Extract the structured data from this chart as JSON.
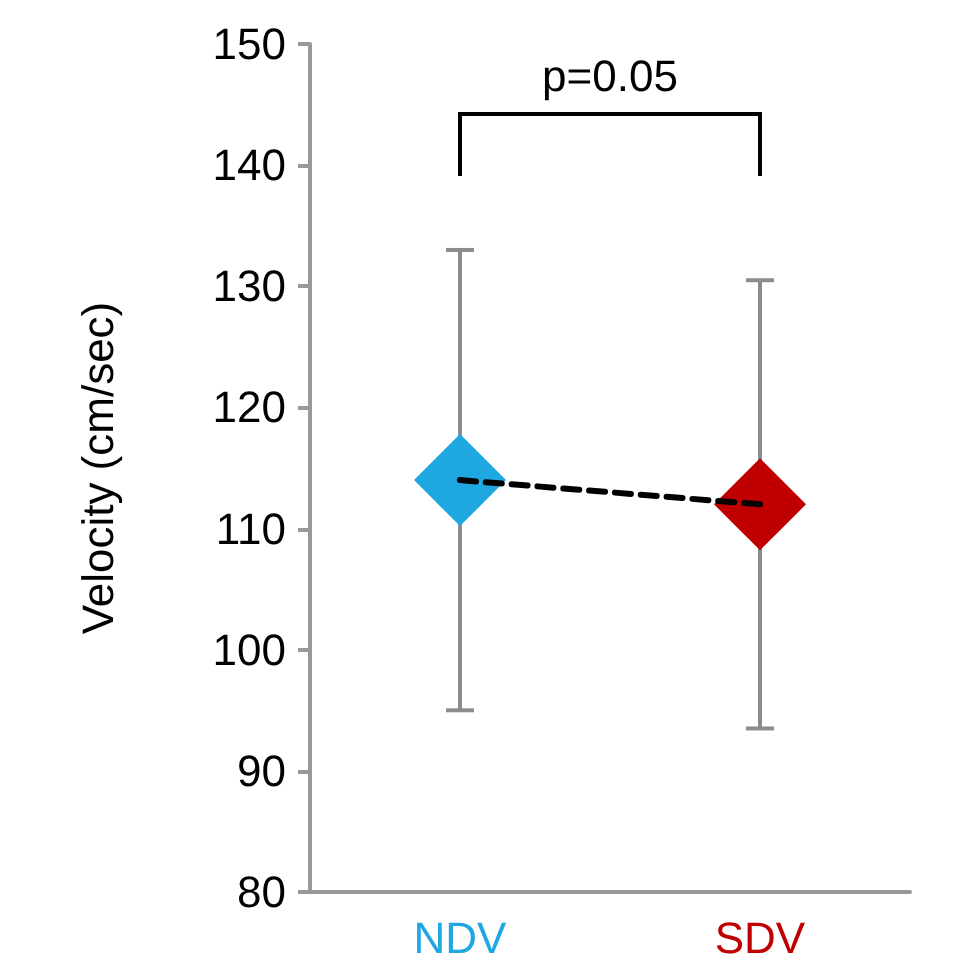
{
  "chart_data": {
    "type": "scatter",
    "ylabel": "Velocity (cm/sec)",
    "categories": [
      "NDV",
      "SDV"
    ],
    "series": [
      {
        "type": "line",
        "color": "#000000",
        "values": [
          114,
          112
        ],
        "line_style": "dashed",
        "marker": "none"
      },
      {
        "colors": [
          "#1ea7e1",
          "#c00000"
        ],
        "values": [
          114,
          112
        ],
        "errors": [
          19,
          18.5
        ],
        "marker": "diamond"
      }
    ],
    "ylim": [
      80,
      150
    ],
    "yticks": [
      80,
      90,
      100,
      110,
      120,
      130,
      140,
      150
    ],
    "grid": false,
    "annotations": [
      "p=0.05"
    ]
  }
}
